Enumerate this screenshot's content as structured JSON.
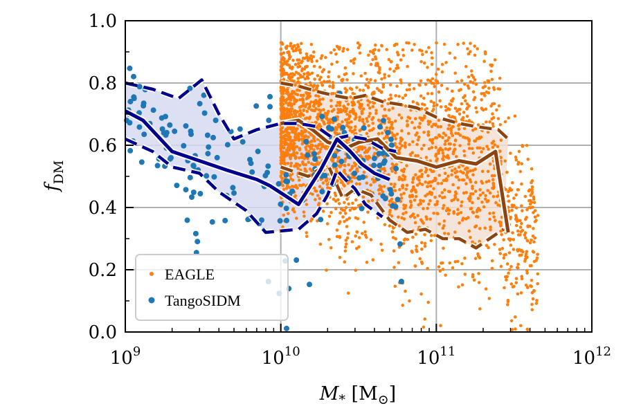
{
  "chart_data": {
    "type": "scatter",
    "xlabel": "M_* [M_⊙]",
    "ylabel": "f_DM",
    "xscale": "log",
    "xlim": [
      1000000000.0,
      1000000000000.0
    ],
    "ylim": [
      0.0,
      1.0
    ],
    "grid": true,
    "legend_position": "lower-left",
    "x_ticks": [
      {
        "value": 1000000000.0,
        "base": "10",
        "exp": "9"
      },
      {
        "value": 10000000000.0,
        "base": "10",
        "exp": "10"
      },
      {
        "value": 100000000000.0,
        "base": "10",
        "exp": "11"
      },
      {
        "value": 1000000000000.0,
        "base": "10",
        "exp": "12"
      }
    ],
    "y_ticks": [
      "0.0",
      "0.2",
      "0.4",
      "0.6",
      "0.8",
      "1.0"
    ],
    "series": [
      {
        "name": "EAGLE",
        "color": "#ff7f0e",
        "band_color": "#f2dfd2",
        "line_color": "#8b4513",
        "approx_points": 2600,
        "x_range": [
          10000000000.0,
          450000000000.0
        ],
        "median": {
          "x": [
            10000000000.0,
            13000000000.0,
            16000000000.0,
            20000000000.0,
            23000000000.0,
            26000000000.0,
            32000000000.0,
            42000000000.0,
            55000000000.0,
            75000000000.0,
            100000000000.0,
            140000000000.0,
            180000000000.0,
            240000000000.0,
            290000000000.0
          ],
          "y": [
            0.67,
            0.68,
            0.65,
            0.61,
            0.6,
            0.59,
            0.61,
            0.62,
            0.56,
            0.55,
            0.53,
            0.55,
            0.54,
            0.58,
            0.32
          ]
        },
        "p16": {
          "x": [
            10000000000.0,
            15000000000.0,
            20000000000.0,
            25000000000.0,
            30000000000.0,
            38000000000.0,
            50000000000.0,
            65000000000.0,
            85000000000.0,
            110000000000.0,
            140000000000.0,
            180000000000.0,
            220000000000.0,
            270000000000.0
          ],
          "y": [
            0.53,
            0.5,
            0.54,
            0.43,
            0.46,
            0.44,
            0.36,
            0.32,
            0.33,
            0.3,
            0.3,
            0.27,
            0.3,
            0.33
          ]
        },
        "p84": {
          "x": [
            10000000000.0,
            13000000000.0,
            18000000000.0,
            22000000000.0,
            28000000000.0,
            35000000000.0,
            45000000000.0,
            60000000000.0,
            75000000000.0,
            100000000000.0,
            140000000000.0,
            180000000000.0,
            250000000000.0,
            290000000000.0
          ],
          "y": [
            0.8,
            0.79,
            0.77,
            0.76,
            0.75,
            0.76,
            0.74,
            0.73,
            0.72,
            0.69,
            0.67,
            0.66,
            0.65,
            0.62
          ]
        }
      },
      {
        "name": "TangoSIDM",
        "color": "#1f77b4",
        "band_color": "#d6daf0",
        "line_color": "#00008b",
        "approx_points": 190,
        "x_range": [
          1000000000.0,
          60000000000.0
        ],
        "median": {
          "x": [
            1000000000.0,
            1300000000.0,
            2000000000.0,
            3000000000.0,
            4500000000.0,
            7000000000.0,
            8500000000.0,
            13000000000.0,
            18000000000.0,
            23000000000.0,
            28000000000.0,
            33000000000.0,
            40000000000.0,
            50000000000.0
          ],
          "y": [
            0.71,
            0.68,
            0.58,
            0.55,
            0.52,
            0.49,
            0.47,
            0.41,
            0.52,
            0.62,
            0.58,
            0.54,
            0.51,
            0.49
          ]
        },
        "p16": {
          "x": [
            1000000000.0,
            1500000000.0,
            2000000000.0,
            3000000000.0,
            4000000000.0,
            6000000000.0,
            8000000000.0,
            13000000000.0,
            17000000000.0,
            20000000000.0,
            23000000000.0,
            26000000000.0,
            30000000000.0,
            35000000000.0,
            45000000000.0
          ],
          "y": [
            0.62,
            0.58,
            0.53,
            0.51,
            0.45,
            0.39,
            0.32,
            0.33,
            0.38,
            0.44,
            0.52,
            0.49,
            0.46,
            0.41,
            0.37
          ]
        },
        "p84": {
          "x": [
            1000000000.0,
            1500000000.0,
            2200000000.0,
            3100000000.0,
            4000000000.0,
            5000000000.0,
            7000000000.0,
            10000000000.0,
            13000000000.0,
            17000000000.0,
            22000000000.0,
            27000000000.0,
            35000000000.0,
            45000000000.0,
            55000000000.0
          ],
          "y": [
            0.8,
            0.78,
            0.75,
            0.81,
            0.7,
            0.62,
            0.65,
            0.67,
            0.67,
            0.66,
            0.62,
            0.63,
            0.62,
            0.59,
            0.58
          ]
        }
      }
    ]
  }
}
